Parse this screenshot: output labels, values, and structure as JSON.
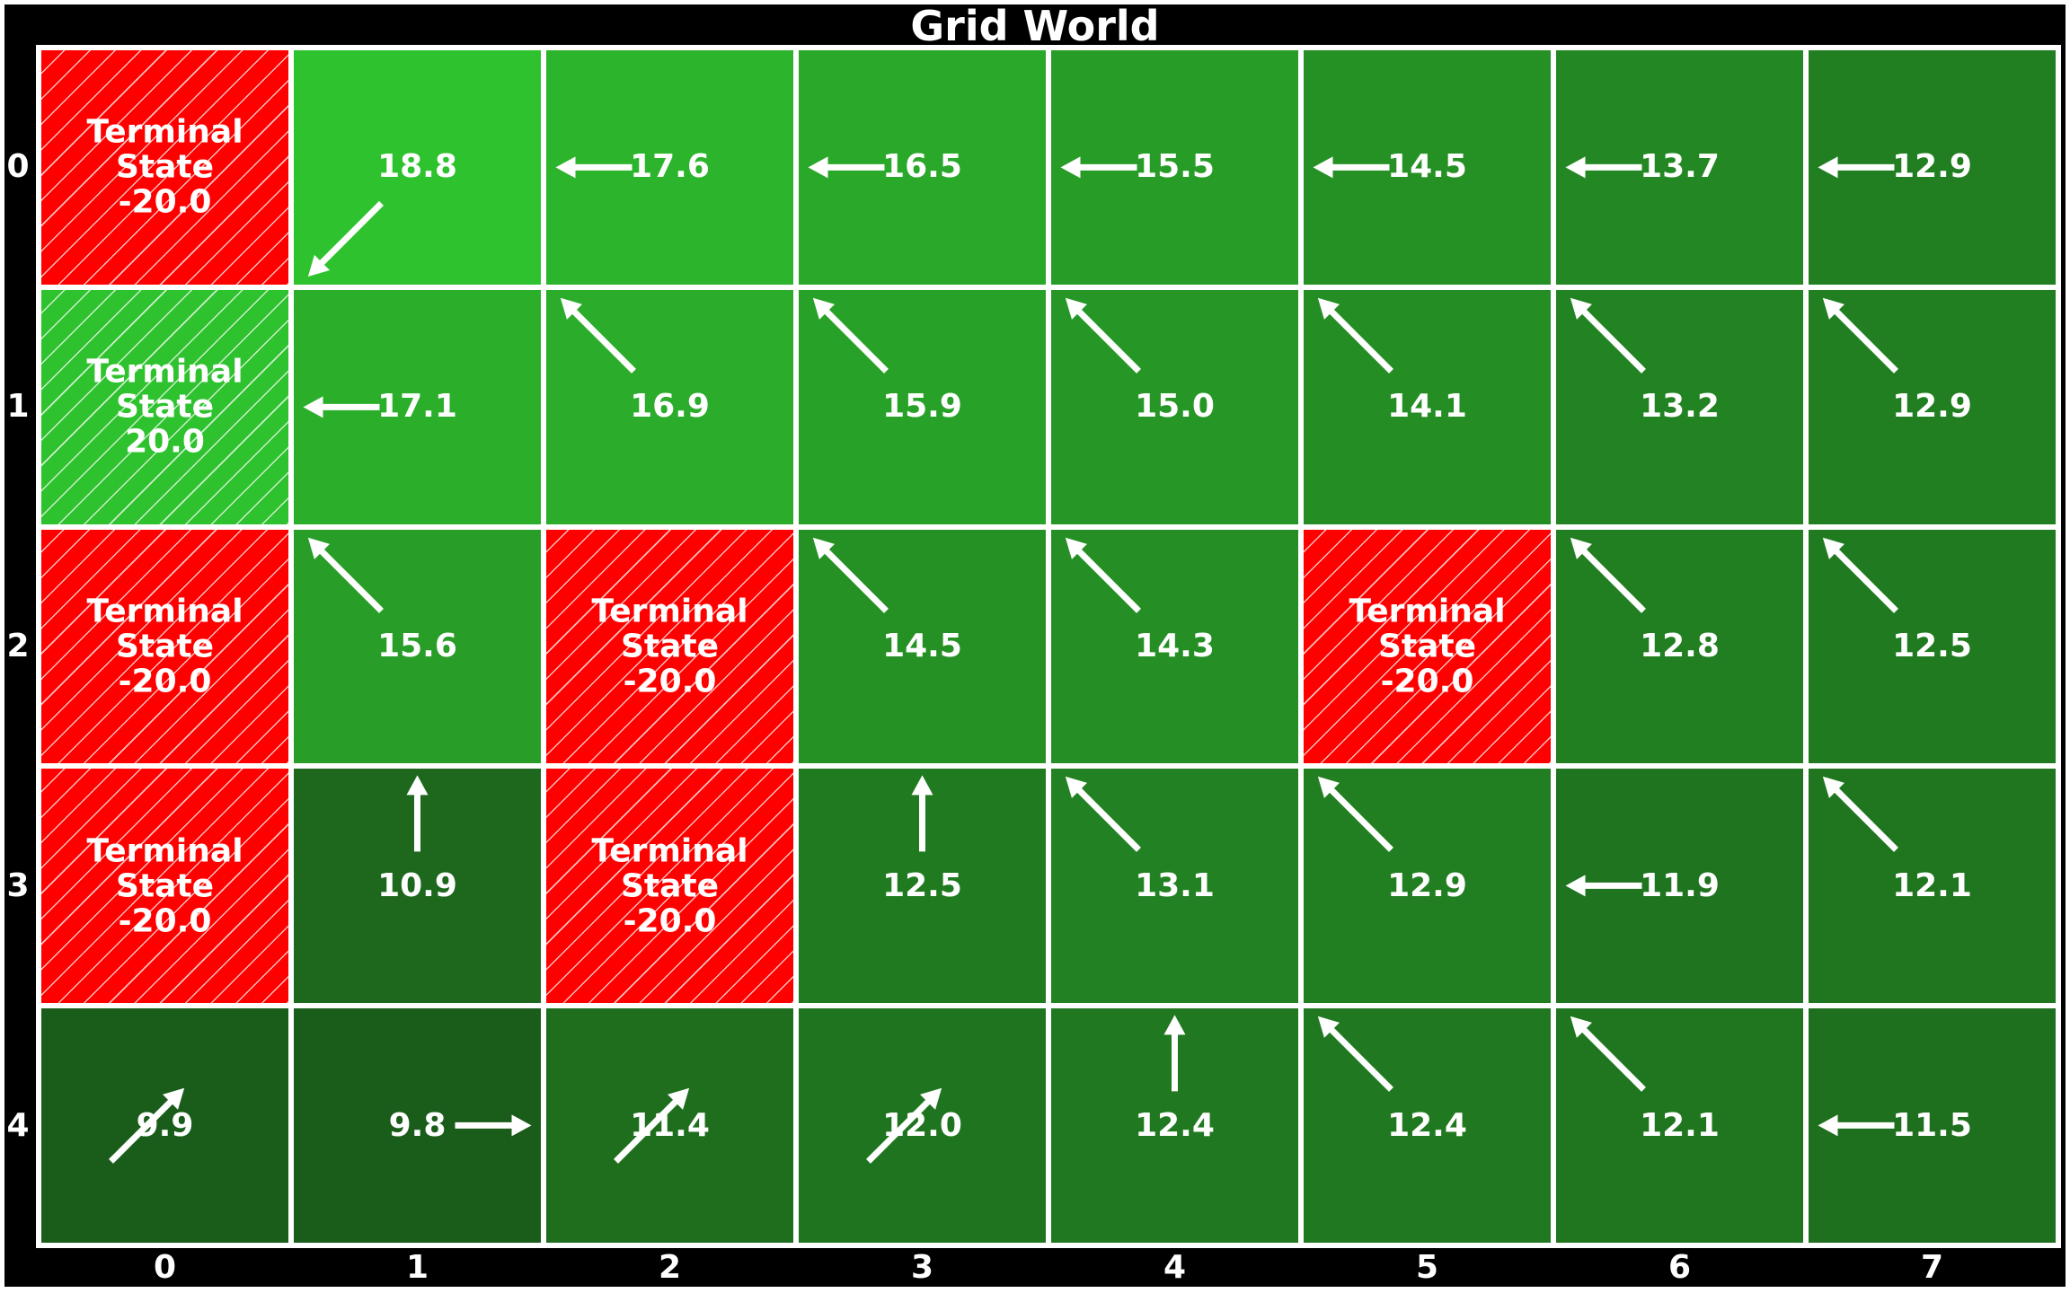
{
  "title": "Grid World",
  "row_labels": [
    "0",
    "1",
    "2",
    "3",
    "4"
  ],
  "col_labels": [
    "0",
    "1",
    "2",
    "3",
    "4",
    "5",
    "6",
    "7"
  ],
  "terminal_label": "Terminal\nState",
  "colors": {
    "negative_terminal": "#ff0000",
    "positive_terminal": "#2fc22f",
    "value_high": "#2fc22f",
    "value_low": "#1a5c1a",
    "grid_line": "#ffffff",
    "text": "#ffffff",
    "arrow": "#ffffff",
    "background": "#000000"
  },
  "value_range": [
    9.8,
    18.8
  ],
  "grid": [
    [
      {
        "terminal": true,
        "value": "-20.0",
        "reward": -20.0
      },
      {
        "value": "18.8",
        "num": 18.8,
        "action": "down-left"
      },
      {
        "value": "17.6",
        "num": 17.6,
        "action": "left"
      },
      {
        "value": "16.5",
        "num": 16.5,
        "action": "left"
      },
      {
        "value": "15.5",
        "num": 15.5,
        "action": "left"
      },
      {
        "value": "14.5",
        "num": 14.5,
        "action": "left"
      },
      {
        "value": "13.7",
        "num": 13.7,
        "action": "left"
      },
      {
        "value": "12.9",
        "num": 12.9,
        "action": "left"
      }
    ],
    [
      {
        "terminal": true,
        "value": "20.0",
        "reward": 20.0
      },
      {
        "value": "17.1",
        "num": 17.1,
        "action": "left"
      },
      {
        "value": "16.9",
        "num": 16.9,
        "action": "up-left"
      },
      {
        "value": "15.9",
        "num": 15.9,
        "action": "up-left"
      },
      {
        "value": "15.0",
        "num": 15.0,
        "action": "up-left"
      },
      {
        "value": "14.1",
        "num": 14.1,
        "action": "up-left"
      },
      {
        "value": "13.2",
        "num": 13.2,
        "action": "up-left"
      },
      {
        "value": "12.9",
        "num": 12.9,
        "action": "up-left"
      }
    ],
    [
      {
        "terminal": true,
        "value": "-20.0",
        "reward": -20.0
      },
      {
        "value": "15.6",
        "num": 15.6,
        "action": "up-left"
      },
      {
        "terminal": true,
        "value": "-20.0",
        "reward": -20.0
      },
      {
        "value": "14.5",
        "num": 14.5,
        "action": "up-left"
      },
      {
        "value": "14.3",
        "num": 14.3,
        "action": "up-left"
      },
      {
        "terminal": true,
        "value": "-20.0",
        "reward": -20.0
      },
      {
        "value": "12.8",
        "num": 12.8,
        "action": "up-left"
      },
      {
        "value": "12.5",
        "num": 12.5,
        "action": "up-left"
      }
    ],
    [
      {
        "terminal": true,
        "value": "-20.0",
        "reward": -20.0
      },
      {
        "value": "10.9",
        "num": 10.9,
        "action": "up"
      },
      {
        "terminal": true,
        "value": "-20.0",
        "reward": -20.0
      },
      {
        "value": "12.5",
        "num": 12.5,
        "action": "up"
      },
      {
        "value": "13.1",
        "num": 13.1,
        "action": "up-left"
      },
      {
        "value": "12.9",
        "num": 12.9,
        "action": "up-left"
      },
      {
        "value": "11.9",
        "num": 11.9,
        "action": "left"
      },
      {
        "value": "12.1",
        "num": 12.1,
        "action": "up-left"
      }
    ],
    [
      {
        "value": "9.9",
        "num": 9.9,
        "action": "up-right"
      },
      {
        "value": "9.8",
        "num": 9.8,
        "action": "right"
      },
      {
        "value": "11.4",
        "num": 11.4,
        "action": "up-right"
      },
      {
        "value": "12.0",
        "num": 12.0,
        "action": "up-right"
      },
      {
        "value": "12.4",
        "num": 12.4,
        "action": "up"
      },
      {
        "value": "12.4",
        "num": 12.4,
        "action": "up-left"
      },
      {
        "value": "12.1",
        "num": 12.1,
        "action": "up-left"
      },
      {
        "value": "11.5",
        "num": 11.5,
        "action": "left"
      }
    ]
  ]
}
